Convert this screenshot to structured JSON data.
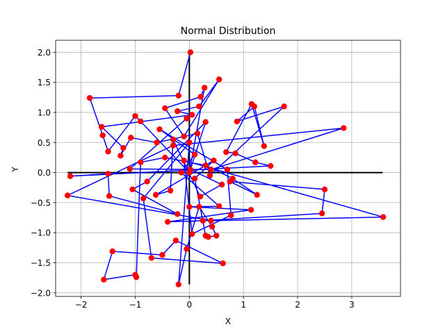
{
  "chart_data": {
    "type": "scatter",
    "title": "Normal Distribution",
    "xlabel": "X",
    "ylabel": "Y",
    "xlim": [
      -2.47,
      3.9
    ],
    "ylim": [
      -2.06,
      2.2
    ],
    "xticks": [
      -2,
      -1,
      0,
      1,
      2,
      3
    ],
    "yticks": [
      -2.0,
      -1.5,
      -1.0,
      -0.5,
      0.0,
      0.5,
      1.0,
      1.5,
      2.0
    ],
    "xtick_labels": [
      "−2",
      "−1",
      "0",
      "1",
      "2",
      "3"
    ],
    "ytick_labels": [
      "−2.0",
      "−1.5",
      "−1.0",
      "−0.5",
      "0.0",
      "0.5",
      "1.0",
      "1.5",
      "2.0"
    ],
    "grid": true,
    "marker_color": "#ff0000",
    "line_color": "#0000ff",
    "axes_line_color": "#000000",
    "reference_lines": {
      "horizontal": {
        "y": 0,
        "x_range": [
          -2.25,
          3.57
        ]
      },
      "vertical": {
        "x": 0,
        "y_range": [
          -1.86,
          2.0
        ]
      }
    },
    "series": [
      {
        "points": [
          [
            0.02,
            2.0
          ],
          [
            -0.2,
            1.28
          ],
          [
            -1.84,
            1.24
          ],
          [
            -1.6,
            0.62
          ],
          [
            -1.5,
            0.35
          ],
          [
            -1.0,
            0.94
          ],
          [
            -0.9,
            0.85
          ],
          [
            0.0,
            0.0
          ],
          [
            0.28,
            1.41
          ],
          [
            0.21,
            1.26
          ],
          [
            -0.45,
            1.07
          ],
          [
            -0.1,
            0.6
          ],
          [
            0.55,
            1.55
          ],
          [
            0.18,
            1.1
          ],
          [
            -0.22,
            1.02
          ],
          [
            0.05,
            0.96
          ],
          [
            -1.62,
            0.76
          ],
          [
            -1.22,
            0.41
          ],
          [
            -1.27,
            0.28
          ],
          [
            -1.08,
            0.58
          ],
          [
            -0.6,
            0.5
          ],
          [
            0.15,
            0.65
          ],
          [
            0.38,
            -0.05
          ],
          [
            1.75,
            1.1
          ],
          [
            0.88,
            0.85
          ],
          [
            1.2,
            1.1
          ],
          [
            1.38,
            0.44
          ],
          [
            1.15,
            1.14
          ],
          [
            0.68,
            0.34
          ],
          [
            0.85,
            0.32
          ],
          [
            1.22,
            0.17
          ],
          [
            1.5,
            0.11
          ],
          [
            -2.2,
            -0.06
          ],
          [
            -1.5,
            -0.02
          ],
          [
            -1.48,
            -0.39
          ],
          [
            -0.22,
            -0.69
          ],
          [
            -1.05,
            -0.28
          ],
          [
            -0.78,
            -0.15
          ],
          [
            0.3,
            0.84
          ],
          [
            0.02,
            0.05
          ],
          [
            0.6,
            -0.2
          ],
          [
            0.2,
            -0.4
          ],
          [
            -0.3,
            0.55
          ],
          [
            -0.35,
            -0.3
          ],
          [
            -0.62,
            -0.37
          ],
          [
            0.45,
            0.2
          ],
          [
            0.1,
            -0.1
          ],
          [
            0.3,
            -1.05
          ],
          [
            0.35,
            -1.07
          ],
          [
            0.5,
            -1.05
          ],
          [
            0.42,
            -0.9
          ],
          [
            0.18,
            -0.57
          ],
          [
            -0.05,
            -1.27
          ],
          [
            -0.2,
            -1.86
          ],
          [
            0.0,
            0.5
          ],
          [
            -0.85,
            -0.43
          ],
          [
            -0.7,
            -1.42
          ],
          [
            0.62,
            -1.51
          ],
          [
            -0.25,
            -1.13
          ],
          [
            -0.5,
            -1.37
          ],
          [
            -1.42,
            -1.31
          ],
          [
            -1.58,
            -1.78
          ],
          [
            -1.0,
            -1.7
          ],
          [
            -0.98,
            -1.74
          ],
          [
            -0.9,
            0.17
          ],
          [
            -0.45,
            0.25
          ],
          [
            0.3,
            0.12
          ],
          [
            0.8,
            -0.1
          ],
          [
            1.25,
            -0.37
          ],
          [
            0.75,
            -0.15
          ],
          [
            2.5,
            -0.28
          ],
          [
            2.45,
            -0.68
          ],
          [
            0.25,
            -0.8
          ],
          [
            -0.4,
            -0.82
          ],
          [
            1.14,
            -0.62
          ],
          [
            0.0,
            -0.57
          ],
          [
            0.55,
            -0.56
          ],
          [
            -0.15,
            0.0
          ],
          [
            0.1,
            0.3
          ],
          [
            -0.55,
            0.72
          ],
          [
            0.7,
            0.05
          ],
          [
            0.77,
            -0.71
          ],
          [
            0.05,
            -1.02
          ],
          [
            -0.1,
            0.2
          ],
          [
            3.58,
            -0.74
          ],
          [
            0.4,
            -0.8
          ],
          [
            -2.25,
            -0.38
          ],
          [
            -0.3,
            0.45
          ],
          [
            2.85,
            0.74
          ],
          [
            0.4,
            0.05
          ],
          [
            -1.1,
            0.06
          ],
          [
            -0.05,
            0.9
          ]
        ]
      }
    ]
  }
}
